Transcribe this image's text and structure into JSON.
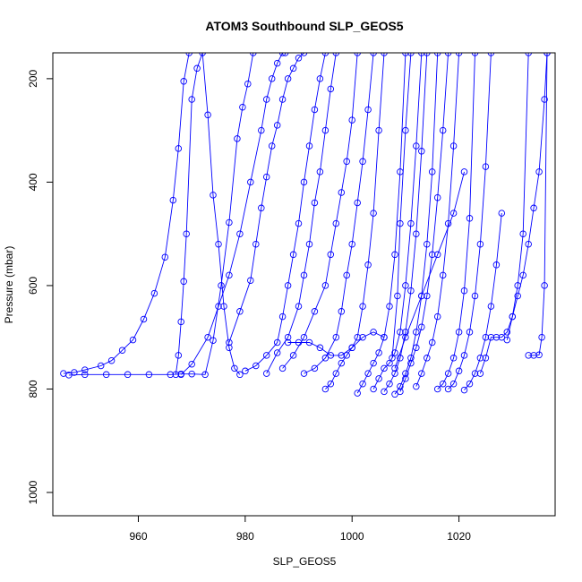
{
  "chart_data": {
    "type": "line",
    "title": "ATOM3 Southbound SLP_GEOS5",
    "xlabel": "SLP_GEOS5",
    "ylabel": "Pressure (mbar)",
    "xlim": [
      944,
      1038
    ],
    "ylim": [
      1045,
      150
    ],
    "y_axis_inverted": true,
    "x_ticks": [
      960,
      980,
      1000,
      1020
    ],
    "y_ticks": [
      200,
      400,
      600,
      800,
      1000
    ],
    "grid": false,
    "legend": "none",
    "marker": "open-circle",
    "color": "#0000ff",
    "series": [
      {
        "x": [
          946,
          948,
          950,
          953,
          955,
          957,
          959,
          961,
          963,
          965,
          966.5,
          967.5,
          968.5,
          969.5
        ],
        "y": [
          770,
          768,
          763,
          755,
          745,
          725,
          705,
          665,
          615,
          545,
          435,
          335,
          205,
          150
        ]
      },
      {
        "x": [
          947,
          950,
          954,
          958,
          962,
          966,
          968,
          970,
          972.5,
          974,
          975.5,
          977,
          978.5,
          979.5,
          980.5,
          981.5
        ],
        "y": [
          773,
          772,
          772,
          772,
          772,
          772,
          771,
          771,
          772,
          706,
          600,
          478,
          316,
          255,
          210,
          150
        ]
      },
      {
        "x": [
          967,
          967.5,
          968,
          968.5,
          969,
          970,
          971,
          972,
          973,
          974,
          975,
          976,
          977,
          978,
          979
        ],
        "y": [
          772,
          735,
          670,
          592,
          500,
          240,
          180,
          150,
          270,
          425,
          520,
          640,
          720,
          760,
          772
        ]
      },
      {
        "x": [
          968,
          970,
          973,
          975,
          977,
          979,
          981,
          983,
          984,
          985,
          986,
          987,
          987.5
        ],
        "y": [
          772,
          752,
          700,
          640,
          580,
          500,
          400,
          300,
          240,
          200,
          170,
          150,
          150
        ]
      },
      {
        "x": [
          977,
          979,
          981,
          982,
          983,
          984,
          985,
          986,
          987,
          988,
          989,
          990,
          991
        ],
        "y": [
          710,
          650,
          590,
          520,
          450,
          390,
          330,
          290,
          240,
          200,
          180,
          160,
          150
        ]
      },
      {
        "x": [
          980,
          982,
          984,
          986,
          987,
          988,
          989,
          990,
          991,
          992,
          993,
          994,
          995
        ],
        "y": [
          765,
          755,
          735,
          710,
          660,
          600,
          540,
          480,
          400,
          330,
          260,
          200,
          150
        ]
      },
      {
        "x": [
          984,
          986,
          988,
          990,
          991,
          992,
          993,
          994,
          995,
          996,
          997
        ],
        "y": [
          770,
          730,
          700,
          640,
          580,
          520,
          440,
          380,
          300,
          220,
          150
        ]
      },
      {
        "x": [
          987,
          989,
          991,
          993,
          995,
          996,
          997,
          998,
          999,
          1000,
          1001
        ],
        "y": [
          760,
          735,
          700,
          650,
          600,
          540,
          480,
          420,
          360,
          280,
          150
        ]
      },
      {
        "x": [
          988,
          990,
          992,
          994,
          996,
          998,
          1000,
          1002,
          1004,
          1006
        ],
        "y": [
          710,
          710,
          710,
          720,
          735,
          735,
          720,
          700,
          690,
          700
        ]
      },
      {
        "x": [
          991,
          993,
          995,
          997,
          998,
          999,
          1000,
          1001,
          1002,
          1003,
          1004
        ],
        "y": [
          770,
          760,
          740,
          700,
          650,
          580,
          520,
          440,
          360,
          260,
          150
        ]
      },
      {
        "x": [
          995,
          996,
          997,
          998,
          999,
          1000,
          1001,
          1002,
          1003,
          1004,
          1005,
          1006
        ],
        "y": [
          800,
          790,
          770,
          750,
          735,
          720,
          700,
          640,
          560,
          460,
          300,
          150
        ]
      },
      {
        "x": [
          1001,
          1002,
          1003,
          1004,
          1005,
          1006,
          1007,
          1008,
          1009,
          1010
        ],
        "y": [
          808,
          790,
          770,
          750,
          730,
          700,
          640,
          540,
          380,
          150
        ]
      },
      {
        "x": [
          1004,
          1005,
          1006,
          1007,
          1008,
          1009,
          1010,
          1011,
          1012,
          1013
        ],
        "y": [
          800,
          780,
          760,
          750,
          730,
          690,
          600,
          480,
          330,
          150
        ]
      },
      {
        "x": [
          1006,
          1007,
          1008,
          1009,
          1010,
          1011,
          1012,
          1013,
          1014
        ],
        "y": [
          805,
          790,
          770,
          740,
          690,
          610,
          500,
          340,
          150
        ]
      },
      {
        "x": [
          1008,
          1009,
          1010,
          1011,
          1012,
          1013,
          1014,
          1015,
          1016
        ],
        "y": [
          810,
          795,
          770,
          740,
          690,
          620,
          520,
          380,
          150
        ]
      },
      {
        "x": [
          1009,
          1010,
          1011,
          1012,
          1013,
          1014,
          1015,
          1016,
          1017,
          1018
        ],
        "y": [
          805,
          780,
          750,
          720,
          680,
          620,
          540,
          430,
          300,
          150
        ]
      },
      {
        "x": [
          1012,
          1013,
          1014,
          1015,
          1016,
          1017,
          1018,
          1019,
          1020
        ],
        "y": [
          795,
          770,
          740,
          710,
          660,
          580,
          480,
          330,
          150
        ]
      },
      {
        "x": [
          1016,
          1017,
          1018,
          1019,
          1020,
          1021,
          1022,
          1023
        ],
        "y": [
          800,
          790,
          770,
          740,
          690,
          610,
          470,
          150
        ]
      },
      {
        "x": [
          1018,
          1019,
          1020,
          1021,
          1022,
          1023,
          1024,
          1025,
          1026
        ],
        "y": [
          800,
          790,
          765,
          735,
          690,
          620,
          520,
          370,
          150
        ]
      },
      {
        "x": [
          1021,
          1022,
          1023,
          1024,
          1025,
          1026,
          1027,
          1028
        ],
        "y": [
          802,
          790,
          770,
          740,
          700,
          640,
          560,
          460
        ]
      },
      {
        "x": [
          1024,
          1025,
          1026,
          1027,
          1028,
          1029,
          1030,
          1031,
          1032,
          1033
        ],
        "y": [
          770,
          740,
          700,
          700,
          700,
          690,
          660,
          600,
          500,
          150
        ]
      },
      {
        "x": [
          1029,
          1030,
          1031,
          1032,
          1033,
          1034,
          1035,
          1036,
          1036.5
        ],
        "y": [
          705,
          660,
          620,
          580,
          520,
          450,
          380,
          240,
          150
        ]
      },
      {
        "x": [
          1033,
          1034,
          1035,
          1035.5,
          1036,
          1036.5
        ],
        "y": [
          735,
          735,
          734,
          700,
          600,
          150
        ]
      },
      {
        "x": [
          1008,
          1010,
          1013,
          1016,
          1019,
          1021
        ],
        "y": [
          760,
          700,
          620,
          540,
          460,
          380
        ]
      },
      {
        "x": [
          1007.5,
          1008.5,
          1009,
          1010,
          1011
        ],
        "y": [
          740,
          620,
          480,
          300,
          150
        ]
      }
    ]
  }
}
